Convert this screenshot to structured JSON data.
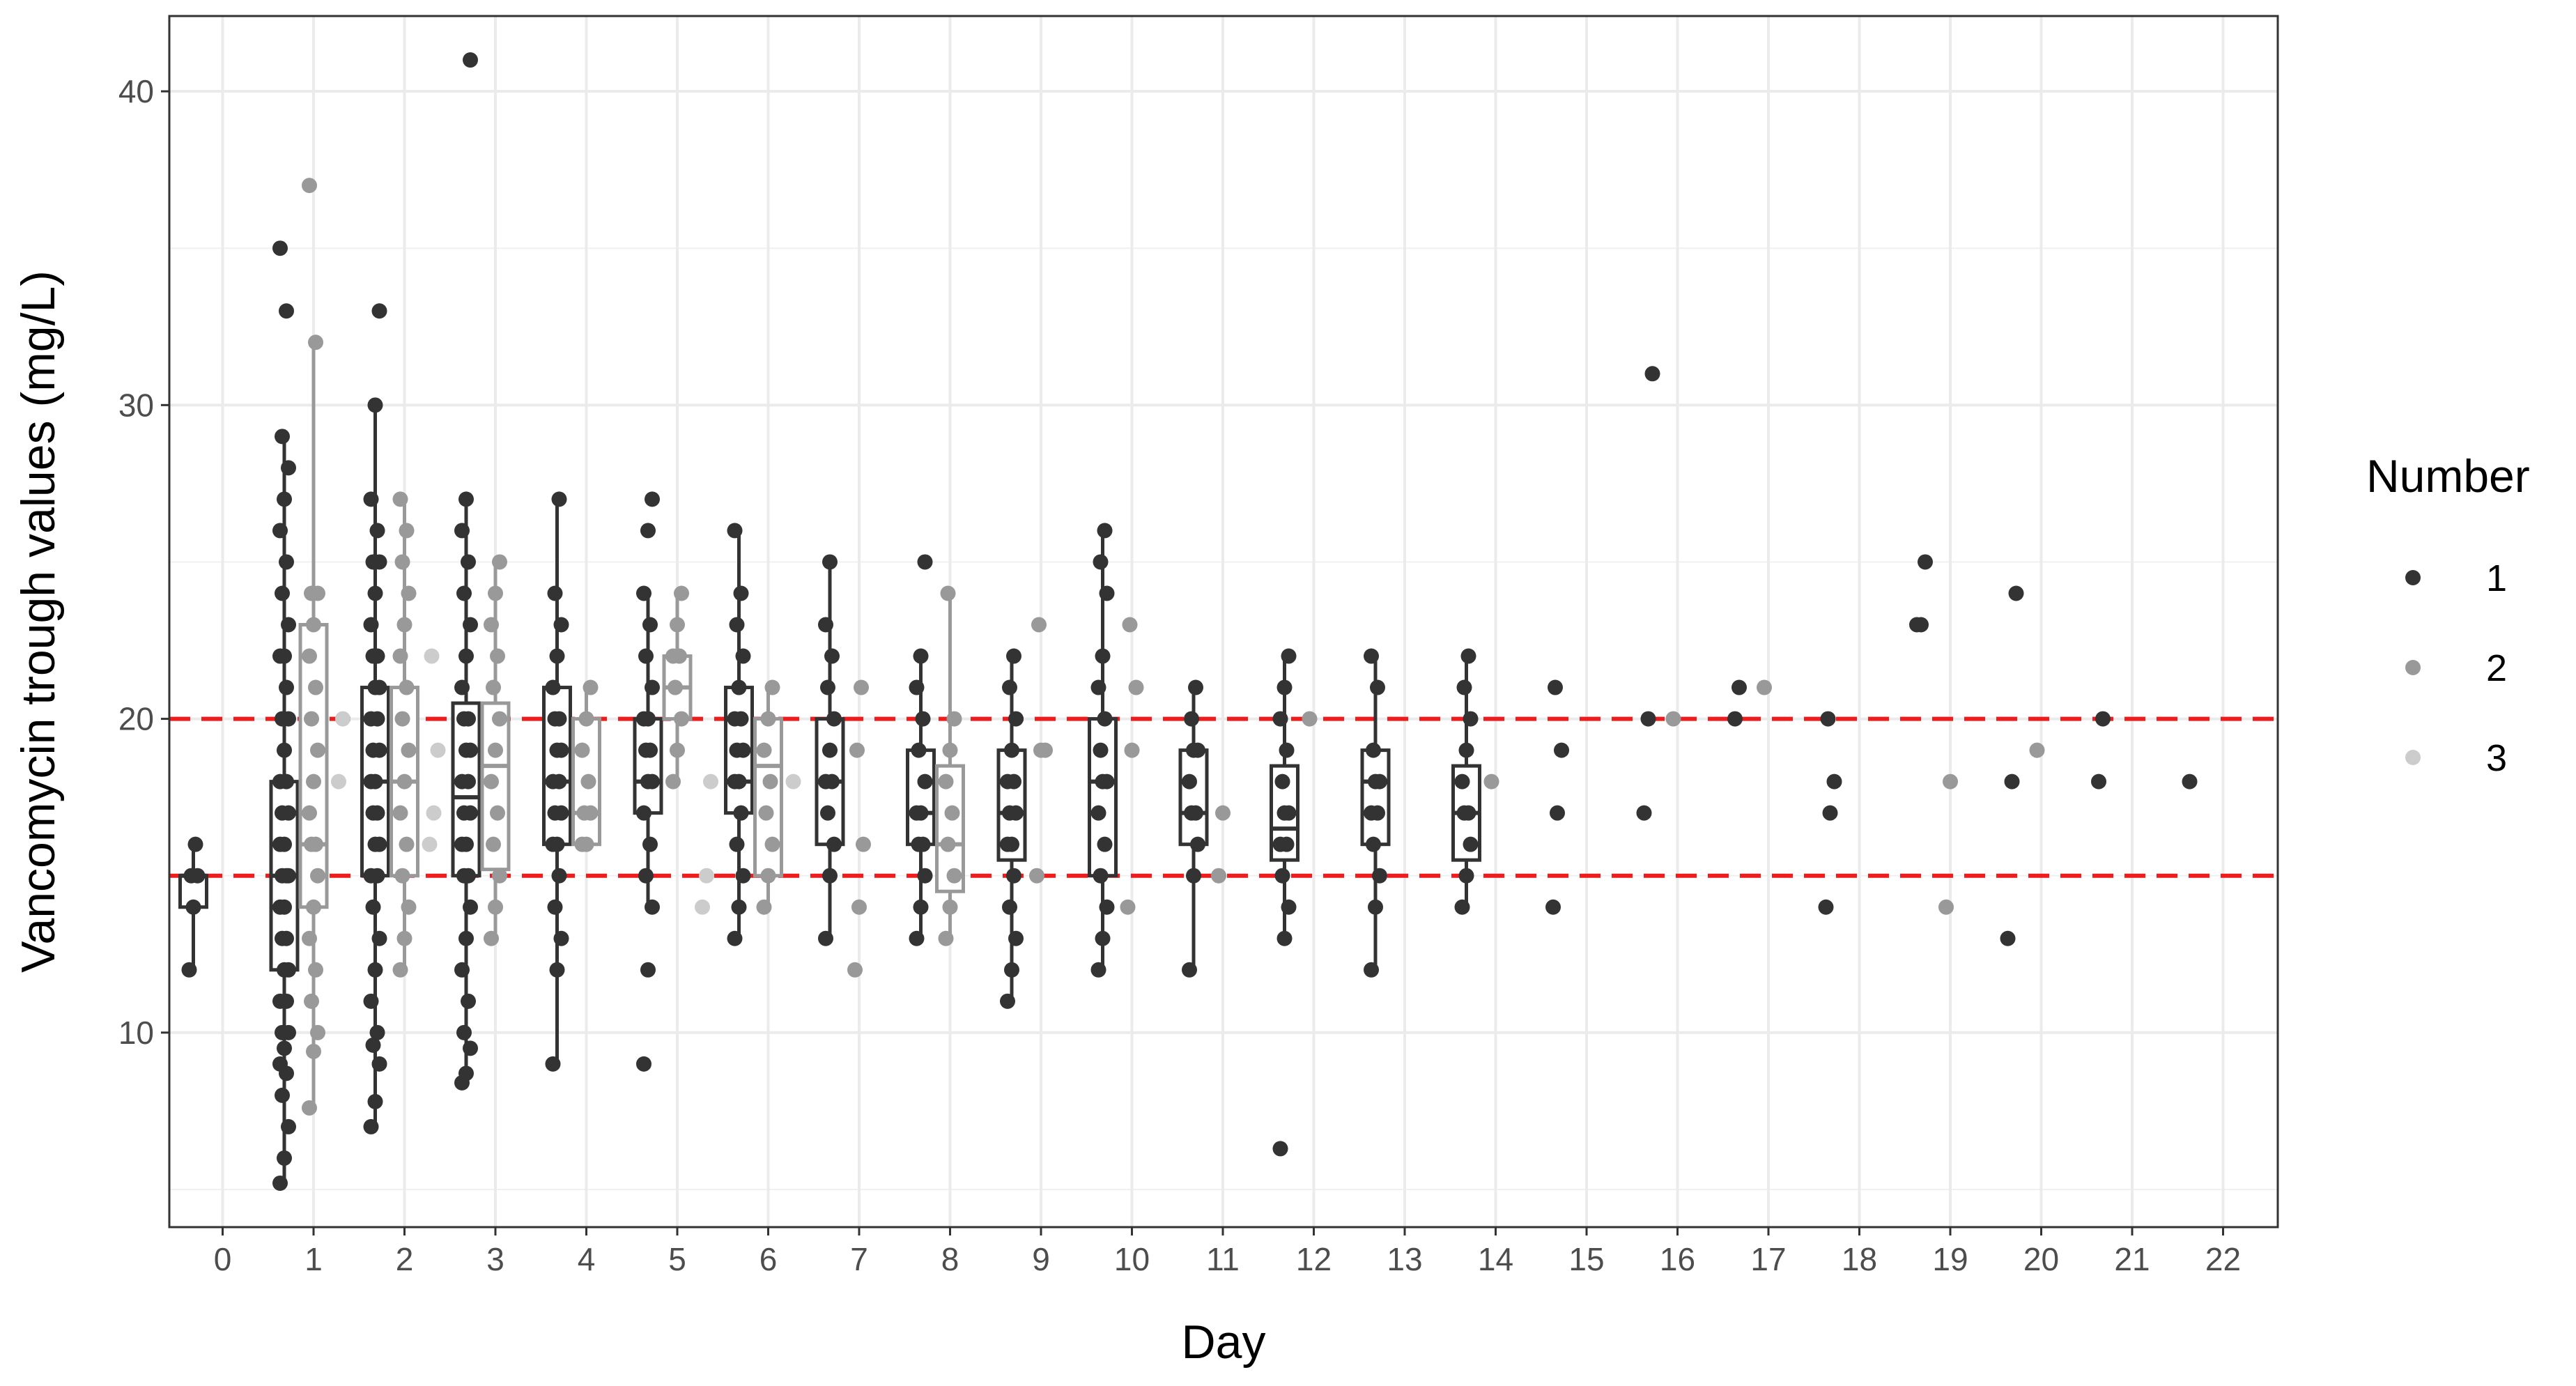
{
  "chart_data": {
    "type": "box",
    "xlabel": "Day",
    "ylabel": "Vancomycin trough values (mg/L)",
    "x_categories": [
      "0",
      "1",
      "2",
      "3",
      "4",
      "5",
      "6",
      "7",
      "8",
      "9",
      "10",
      "11",
      "12",
      "13",
      "14",
      "15",
      "16",
      "17",
      "18",
      "19",
      "20",
      "21",
      "22"
    ],
    "y_ticks": [
      10,
      20,
      30,
      40
    ],
    "ylim": [
      3.8,
      42.4
    ],
    "grid": true,
    "reference_lines": [
      {
        "y": 15,
        "color": "#ee1c1c",
        "style": "dashed"
      },
      {
        "y": 20,
        "color": "#ee1c1c",
        "style": "dashed"
      }
    ],
    "legend": {
      "title": "Number",
      "position": "right",
      "entries": [
        {
          "label": "1",
          "color": "#333333"
        },
        {
          "label": "2",
          "color": "#999999"
        },
        {
          "label": "3",
          "color": "#cccccc"
        }
      ]
    },
    "colors": {
      "1": "#333333",
      "2": "#999999",
      "3": "#cccccc",
      "reference": "#ee1c1c"
    },
    "series": [
      {
        "name": "1",
        "color": "#333333",
        "boxes": [
          {
            "day": 0,
            "min": 12,
            "q1": 14,
            "median": 15,
            "q3": 15,
            "max": 16,
            "points": [
              12,
              14,
              15,
              15,
              16
            ]
          },
          {
            "day": 1,
            "min": 5.2,
            "q1": 12,
            "median": 15,
            "q3": 18,
            "max": 29,
            "outliers": [
              33,
              35
            ],
            "points": [
              5.2,
              6,
              7,
              8,
              8.7,
              9,
              9.5,
              10,
              10,
              11,
              11,
              12,
              12,
              13,
              13,
              14,
              14,
              15,
              15,
              15,
              16,
              16,
              17,
              17,
              18,
              18,
              19,
              20,
              20,
              21,
              22,
              22,
              23,
              24,
              25,
              26,
              27,
              28,
              29,
              33,
              35
            ]
          },
          {
            "day": 2,
            "min": 7,
            "q1": 15,
            "median": 18,
            "q3": 21,
            "max": 30,
            "outliers": [
              33
            ],
            "points": [
              7,
              7.8,
              9,
              9.6,
              10,
              11,
              12,
              13,
              14,
              15,
              15,
              16,
              16,
              17,
              17,
              18,
              18,
              19,
              19,
              20,
              20,
              21,
              21,
              22,
              22,
              23,
              24,
              25,
              25,
              26,
              27,
              30,
              33
            ]
          },
          {
            "day": 3,
            "min": 8.4,
            "q1": 15,
            "median": 17.5,
            "q3": 20.5,
            "max": 27,
            "outliers": [
              41
            ],
            "points": [
              8.4,
              8.7,
              9.5,
              10,
              11,
              12,
              13,
              14,
              15,
              15,
              16,
              16,
              17,
              17,
              18,
              18,
              19,
              19,
              20,
              20,
              21,
              22,
              23,
              24,
              25,
              26,
              27,
              41
            ]
          },
          {
            "day": 4,
            "min": 9,
            "q1": 16,
            "median": 18,
            "q3": 21,
            "max": 27,
            "points": [
              9,
              12,
              13,
              14,
              15,
              16,
              16,
              17,
              17,
              18,
              18,
              19,
              19,
              20,
              20,
              21,
              22,
              23,
              24,
              27
            ]
          },
          {
            "day": 5,
            "min": 14,
            "q1": 17,
            "median": 18,
            "q3": 20,
            "max": 24,
            "outliers": [
              9,
              12,
              26,
              27
            ],
            "points": [
              9,
              12,
              14,
              15,
              16,
              17,
              18,
              18,
              19,
              19,
              20,
              20,
              21,
              22,
              23,
              24,
              26,
              27
            ]
          },
          {
            "day": 6,
            "min": 13,
            "q1": 17,
            "median": 18,
            "q3": 21,
            "max": 26,
            "points": [
              13,
              14,
              15,
              16,
              17,
              18,
              18,
              19,
              19,
              20,
              20,
              21,
              22,
              23,
              24,
              26
            ]
          },
          {
            "day": 7,
            "min": 13,
            "q1": 16,
            "median": 18,
            "q3": 20,
            "max": 25,
            "points": [
              13,
              15,
              16,
              17,
              18,
              18,
              19,
              20,
              21,
              22,
              23,
              25
            ]
          },
          {
            "day": 8,
            "min": 13,
            "q1": 16,
            "median": 17,
            "q3": 19,
            "max": 22,
            "outliers": [
              25
            ],
            "points": [
              13,
              14,
              15,
              16,
              16,
              17,
              17,
              18,
              19,
              20,
              21,
              22,
              25
            ]
          },
          {
            "day": 9,
            "min": 11,
            "q1": 15.5,
            "median": 17,
            "q3": 19,
            "max": 22,
            "points": [
              11,
              12,
              13,
              14,
              15,
              16,
              16,
              17,
              17,
              18,
              18,
              19,
              20,
              21,
              22
            ]
          },
          {
            "day": 10,
            "min": 12,
            "q1": 15,
            "median": 18,
            "q3": 20,
            "max": 26,
            "points": [
              12,
              13,
              14,
              15,
              16,
              17,
              18,
              18,
              19,
              20,
              21,
              22,
              24,
              25,
              26
            ]
          },
          {
            "day": 11,
            "min": 12,
            "q1": 16,
            "median": 17,
            "q3": 19,
            "max": 21,
            "points": [
              12,
              15,
              16,
              17,
              17,
              18,
              19,
              19,
              20,
              21
            ]
          },
          {
            "day": 12,
            "min": 13,
            "q1": 15.5,
            "median": 16.5,
            "q3": 18.5,
            "max": 22,
            "outliers": [
              6.3
            ],
            "points": [
              6.3,
              13,
              14,
              15,
              16,
              16,
              17,
              17,
              18,
              19,
              20,
              21,
              22
            ]
          },
          {
            "day": 13,
            "min": 12,
            "q1": 16,
            "median": 18,
            "q3": 19,
            "max": 22,
            "points": [
              12,
              14,
              15,
              16,
              17,
              17,
              18,
              18,
              19,
              21,
              22
            ]
          },
          {
            "day": 14,
            "min": 14,
            "q1": 15.5,
            "median": 17,
            "q3": 18.5,
            "max": 22,
            "points": [
              14,
              15,
              16,
              17,
              17,
              18,
              19,
              20,
              21,
              22
            ]
          },
          {
            "day": 15,
            "points": [
              14,
              17,
              19,
              21
            ]
          },
          {
            "day": 16,
            "points": [
              17,
              20,
              31
            ]
          },
          {
            "day": 17,
            "points": [
              20,
              21
            ]
          },
          {
            "day": 18,
            "points": [
              14,
              17,
              18,
              20
            ]
          },
          {
            "day": 19,
            "points": [
              23,
              23,
              25
            ]
          },
          {
            "day": 20,
            "points": [
              13,
              18,
              24
            ]
          },
          {
            "day": 21,
            "points": [
              18,
              20
            ]
          },
          {
            "day": 22,
            "points": [
              18
            ]
          }
        ]
      },
      {
        "name": "2",
        "color": "#999999",
        "boxes": [
          {
            "day": 1,
            "min": 7.6,
            "q1": 14,
            "median": 16,
            "q3": 23,
            "max": 32,
            "outliers": [
              37
            ],
            "points": [
              7.6,
              9.4,
              10,
              11,
              12,
              13,
              14,
              15,
              16,
              16,
              17,
              18,
              19,
              20,
              21,
              22,
              23,
              24,
              24,
              32,
              37
            ]
          },
          {
            "day": 2,
            "min": 12,
            "q1": 15,
            "median": 18,
            "q3": 21,
            "max": 27,
            "points": [
              12,
              13,
              14,
              15,
              16,
              17,
              18,
              19,
              20,
              21,
              22,
              23,
              24,
              25,
              26,
              27
            ]
          },
          {
            "day": 3,
            "min": 13,
            "q1": 15.2,
            "median": 18.5,
            "q3": 20.5,
            "max": 25,
            "points": [
              13,
              14,
              15,
              16,
              17,
              18,
              19,
              20,
              21,
              22,
              23,
              24,
              25
            ]
          },
          {
            "day": 4,
            "min": 16,
            "q1": 16,
            "median": 17,
            "q3": 20,
            "max": 21,
            "points": [
              16,
              16,
              17,
              17,
              18,
              19,
              20,
              21
            ]
          },
          {
            "day": 5,
            "min": 18,
            "q1": 20,
            "median": 21,
            "q3": 22,
            "max": 24,
            "points": [
              18,
              19,
              20,
              21,
              22,
              22,
              23,
              24
            ]
          },
          {
            "day": 6,
            "min": 14,
            "q1": 15,
            "median": 18.5,
            "q3": 20,
            "max": 21,
            "points": [
              14,
              15,
              16,
              17,
              18,
              19,
              20,
              21
            ]
          },
          {
            "day": 7,
            "points": [
              12,
              14,
              16,
              19,
              21
            ]
          },
          {
            "day": 8,
            "min": 13,
            "q1": 14.5,
            "median": 16,
            "q3": 18.5,
            "max": 24,
            "points": [
              13,
              14,
              15,
              16,
              17,
              18,
              19,
              20,
              24
            ]
          },
          {
            "day": 9,
            "points": [
              15,
              19,
              19,
              23
            ]
          },
          {
            "day": 10,
            "points": [
              14,
              19,
              21,
              23
            ]
          },
          {
            "day": 11,
            "points": [
              15,
              17
            ]
          },
          {
            "day": 12,
            "points": [
              20
            ]
          },
          {
            "day": 14,
            "points": [
              18
            ]
          },
          {
            "day": 16,
            "points": [
              20
            ]
          },
          {
            "day": 17,
            "points": [
              21
            ]
          },
          {
            "day": 19,
            "points": [
              14,
              18
            ]
          },
          {
            "day": 20,
            "points": [
              19
            ]
          }
        ]
      },
      {
        "name": "3",
        "color": "#cccccc",
        "boxes": [
          {
            "day": 1,
            "points": [
              18,
              20
            ]
          },
          {
            "day": 2,
            "points": [
              16,
              17,
              19,
              22
            ]
          },
          {
            "day": 5,
            "points": [
              14,
              15,
              18
            ]
          },
          {
            "day": 6,
            "points": [
              18
            ]
          }
        ]
      }
    ]
  }
}
